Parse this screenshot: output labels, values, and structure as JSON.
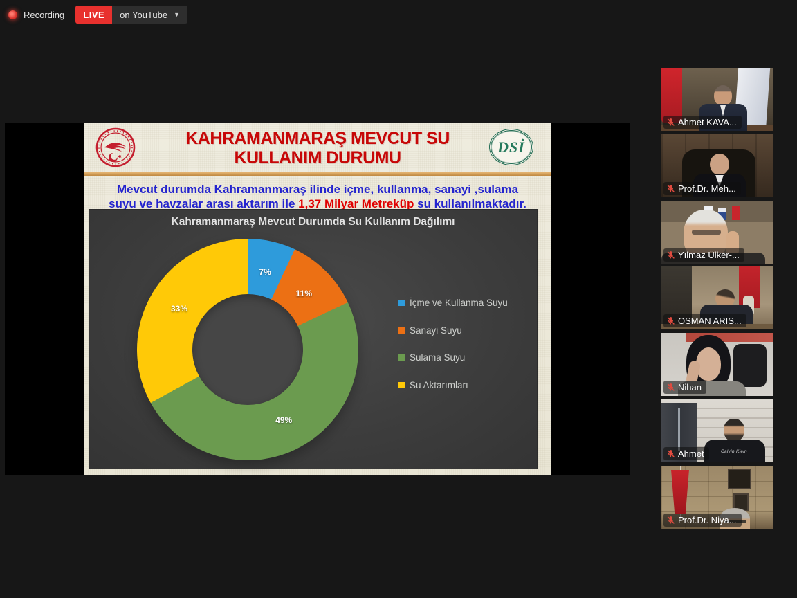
{
  "top_bar": {
    "recording_label": "Recording",
    "live_badge": "LIVE",
    "stream_target": "on YouTube",
    "caret_icon": "▼"
  },
  "slide": {
    "title_line1": "KAHRAMANMARAŞ MEVCUT SU",
    "title_line2": "KULLANIM DURUMU",
    "subtitle_line1": "Mevcut durumda Kahramanmaraş ilinde içme, kullanma, sanayi ,sulama",
    "subtitle_line2_pre": "suyu ve havzalar arası aktarım ile ",
    "subtitle_highlight": "1,37 Milyar Metreküp",
    "subtitle_line2_post": " su kullanılmaktadır.",
    "left_logo": "tarim-ve-orman-bakanligi-seal",
    "right_logo_text": "DSİ"
  },
  "chart_data": {
    "type": "pie",
    "variant": "donut",
    "title": "Kahramanmaraş Mevcut Durumda Su Kullanım Dağılımı",
    "categories": [
      "İçme ve Kullanma Suyu",
      "Sanayi Suyu",
      "Sulama Suyu",
      "Su Aktarımları"
    ],
    "values": [
      7,
      11,
      49,
      33
    ],
    "labels": [
      "7%",
      "11%",
      "49%",
      "33%"
    ],
    "colors": [
      "#2E9BDB",
      "#EC7014",
      "#6B9B4F",
      "#FFC907"
    ],
    "legend_position": "right",
    "start_angle_deg": 0,
    "hole_ratio": 0.5
  },
  "participants": [
    {
      "name": "Ahmet KAVA...",
      "muted": true
    },
    {
      "name": "Prof.Dr. Meh...",
      "muted": true
    },
    {
      "name": "Yılmaz Ülker-...",
      "muted": true
    },
    {
      "name": "OSMAN ARIS...",
      "muted": true
    },
    {
      "name": "Nihan",
      "muted": true
    },
    {
      "name": "Ahmet",
      "muted": true,
      "shirt_text": "Calvin Klein"
    },
    {
      "name": "Prof.Dr. Niya...",
      "muted": true
    }
  ]
}
